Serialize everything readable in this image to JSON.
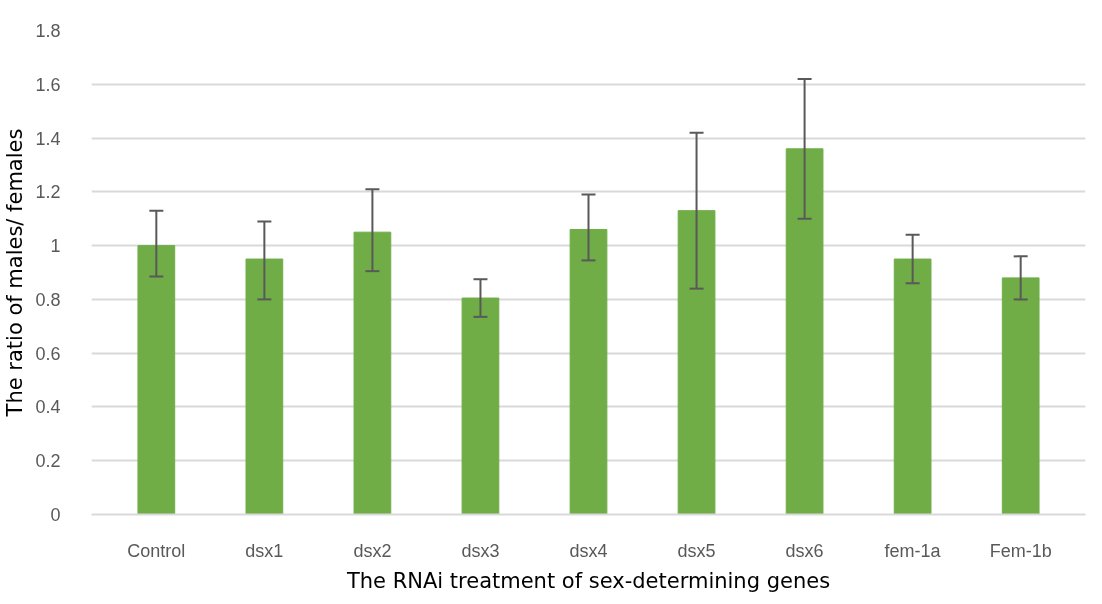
{
  "chart_data": {
    "type": "bar",
    "xlabel": "The RNAi treatment of sex-determining genes",
    "ylabel": "The ratio of males/ females",
    "categories": [
      "Control",
      "dsx1",
      "dsx2",
      "dsx3",
      "dsx4",
      "dsx5",
      "dsx6",
      "fem-1a",
      "Fem-1b"
    ],
    "values": [
      1.0,
      0.95,
      1.05,
      0.805,
      1.06,
      1.13,
      1.36,
      0.95,
      0.88
    ],
    "errors": [
      [
        0.885,
        1.13
      ],
      [
        0.8,
        1.09
      ],
      [
        0.905,
        1.21
      ],
      [
        0.735,
        0.875
      ],
      [
        0.945,
        1.19
      ],
      [
        0.84,
        1.42
      ],
      [
        1.1,
        1.62
      ],
      [
        0.86,
        1.04
      ],
      [
        0.8,
        0.96
      ]
    ],
    "color": "#70ad47",
    "ylim": [
      0,
      1.8
    ],
    "yticks": [
      0,
      0.2,
      0.4,
      0.6,
      0.8,
      1,
      1.2,
      1.4,
      1.6,
      1.8
    ],
    "grid": "y"
  }
}
